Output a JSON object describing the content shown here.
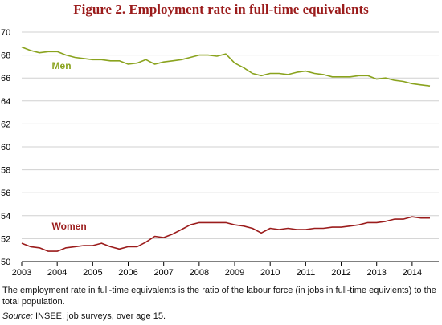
{
  "chart_data": {
    "type": "line",
    "title": "Figure 2. Employment rate in full-time equivalents",
    "xlabel": "",
    "ylabel": "",
    "xlim": [
      2003.0,
      2014.75
    ],
    "ylim": [
      50,
      70
    ],
    "yticks": [
      50,
      52,
      54,
      56,
      58,
      60,
      62,
      64,
      66,
      68,
      70
    ],
    "xticks": [
      2003,
      2004,
      2005,
      2006,
      2007,
      2008,
      2009,
      2010,
      2011,
      2012,
      2013,
      2014
    ],
    "grid": "horizontal",
    "colors": {
      "men": "#8aa31e",
      "women": "#9b1c1c",
      "grid": "#d0d0d0",
      "title": "#9b1c1c"
    },
    "series": [
      {
        "name": "Men",
        "x": [
          2003.0,
          2003.25,
          2003.5,
          2003.75,
          2004.0,
          2004.25,
          2004.5,
          2004.75,
          2005.0,
          2005.25,
          2005.5,
          2005.75,
          2006.0,
          2006.25,
          2006.5,
          2006.75,
          2007.0,
          2007.25,
          2007.5,
          2007.75,
          2008.0,
          2008.25,
          2008.5,
          2008.75,
          2009.0,
          2009.25,
          2009.5,
          2009.75,
          2010.0,
          2010.25,
          2010.5,
          2010.75,
          2011.0,
          2011.25,
          2011.5,
          2011.75,
          2012.0,
          2012.25,
          2012.5,
          2012.75,
          2013.0,
          2013.25,
          2013.5,
          2013.75,
          2014.0,
          2014.25,
          2014.5
        ],
        "values": [
          68.7,
          68.4,
          68.2,
          68.3,
          68.3,
          68.0,
          67.8,
          67.7,
          67.6,
          67.6,
          67.5,
          67.5,
          67.2,
          67.3,
          67.6,
          67.2,
          67.4,
          67.5,
          67.6,
          67.8,
          68.0,
          68.0,
          67.9,
          68.1,
          67.3,
          66.9,
          66.4,
          66.2,
          66.4,
          66.4,
          66.3,
          66.5,
          66.6,
          66.4,
          66.3,
          66.1,
          66.1,
          66.1,
          66.2,
          66.2,
          65.9,
          66.0,
          65.8,
          65.7,
          65.5,
          65.4,
          65.3
        ]
      },
      {
        "name": "Women",
        "x": [
          2003.0,
          2003.25,
          2003.5,
          2003.75,
          2004.0,
          2004.25,
          2004.5,
          2004.75,
          2005.0,
          2005.25,
          2005.5,
          2005.75,
          2006.0,
          2006.25,
          2006.5,
          2006.75,
          2007.0,
          2007.25,
          2007.5,
          2007.75,
          2008.0,
          2008.25,
          2008.5,
          2008.75,
          2009.0,
          2009.25,
          2009.5,
          2009.75,
          2010.0,
          2010.25,
          2010.5,
          2010.75,
          2011.0,
          2011.25,
          2011.5,
          2011.75,
          2012.0,
          2012.25,
          2012.5,
          2012.75,
          2013.0,
          2013.25,
          2013.5,
          2013.75,
          2014.0,
          2014.25,
          2014.5
        ],
        "values": [
          51.6,
          51.3,
          51.2,
          50.9,
          50.9,
          51.2,
          51.3,
          51.4,
          51.4,
          51.6,
          51.3,
          51.1,
          51.3,
          51.3,
          51.7,
          52.2,
          52.1,
          52.4,
          52.8,
          53.2,
          53.4,
          53.4,
          53.4,
          53.4,
          53.2,
          53.1,
          52.9,
          52.5,
          52.9,
          52.8,
          52.9,
          52.8,
          52.8,
          52.9,
          52.9,
          53.0,
          53.0,
          53.1,
          53.2,
          53.4,
          53.4,
          53.5,
          53.7,
          53.7,
          53.9,
          53.8,
          53.8
        ]
      }
    ]
  },
  "footnote": "The employment rate in full-time equivalents is the ratio of the labour force (in jobs in full-time equivients) to the total population.",
  "source": {
    "label": "Source:",
    "text": " INSEE, job surveys, over age 15."
  }
}
